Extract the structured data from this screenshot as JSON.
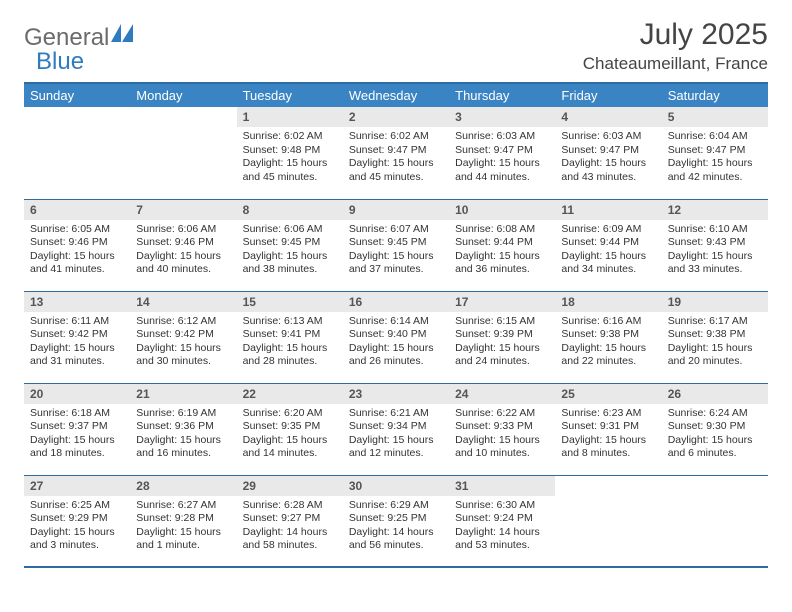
{
  "logo": {
    "general": "General",
    "blue": "Blue"
  },
  "title": "July 2025",
  "location": "Chateaumeillant, France",
  "colors": {
    "header_bg": "#3b84c4",
    "header_border": "#2f6ca3",
    "daynum_bg": "#e9e9e9",
    "text": "#333333",
    "logo_gray": "#6b6b6b",
    "logo_blue": "#2f7bbf"
  },
  "weekdays": [
    "Sunday",
    "Monday",
    "Tuesday",
    "Wednesday",
    "Thursday",
    "Friday",
    "Saturday"
  ],
  "weeks": [
    [
      {
        "empty": true
      },
      {
        "empty": true
      },
      {
        "n": "1",
        "sr": "Sunrise: 6:02 AM",
        "ss": "Sunset: 9:48 PM",
        "dl": "Daylight: 15 hours and 45 minutes."
      },
      {
        "n": "2",
        "sr": "Sunrise: 6:02 AM",
        "ss": "Sunset: 9:47 PM",
        "dl": "Daylight: 15 hours and 45 minutes."
      },
      {
        "n": "3",
        "sr": "Sunrise: 6:03 AM",
        "ss": "Sunset: 9:47 PM",
        "dl": "Daylight: 15 hours and 44 minutes."
      },
      {
        "n": "4",
        "sr": "Sunrise: 6:03 AM",
        "ss": "Sunset: 9:47 PM",
        "dl": "Daylight: 15 hours and 43 minutes."
      },
      {
        "n": "5",
        "sr": "Sunrise: 6:04 AM",
        "ss": "Sunset: 9:47 PM",
        "dl": "Daylight: 15 hours and 42 minutes."
      }
    ],
    [
      {
        "n": "6",
        "sr": "Sunrise: 6:05 AM",
        "ss": "Sunset: 9:46 PM",
        "dl": "Daylight: 15 hours and 41 minutes."
      },
      {
        "n": "7",
        "sr": "Sunrise: 6:06 AM",
        "ss": "Sunset: 9:46 PM",
        "dl": "Daylight: 15 hours and 40 minutes."
      },
      {
        "n": "8",
        "sr": "Sunrise: 6:06 AM",
        "ss": "Sunset: 9:45 PM",
        "dl": "Daylight: 15 hours and 38 minutes."
      },
      {
        "n": "9",
        "sr": "Sunrise: 6:07 AM",
        "ss": "Sunset: 9:45 PM",
        "dl": "Daylight: 15 hours and 37 minutes."
      },
      {
        "n": "10",
        "sr": "Sunrise: 6:08 AM",
        "ss": "Sunset: 9:44 PM",
        "dl": "Daylight: 15 hours and 36 minutes."
      },
      {
        "n": "11",
        "sr": "Sunrise: 6:09 AM",
        "ss": "Sunset: 9:44 PM",
        "dl": "Daylight: 15 hours and 34 minutes."
      },
      {
        "n": "12",
        "sr": "Sunrise: 6:10 AM",
        "ss": "Sunset: 9:43 PM",
        "dl": "Daylight: 15 hours and 33 minutes."
      }
    ],
    [
      {
        "n": "13",
        "sr": "Sunrise: 6:11 AM",
        "ss": "Sunset: 9:42 PM",
        "dl": "Daylight: 15 hours and 31 minutes."
      },
      {
        "n": "14",
        "sr": "Sunrise: 6:12 AM",
        "ss": "Sunset: 9:42 PM",
        "dl": "Daylight: 15 hours and 30 minutes."
      },
      {
        "n": "15",
        "sr": "Sunrise: 6:13 AM",
        "ss": "Sunset: 9:41 PM",
        "dl": "Daylight: 15 hours and 28 minutes."
      },
      {
        "n": "16",
        "sr": "Sunrise: 6:14 AM",
        "ss": "Sunset: 9:40 PM",
        "dl": "Daylight: 15 hours and 26 minutes."
      },
      {
        "n": "17",
        "sr": "Sunrise: 6:15 AM",
        "ss": "Sunset: 9:39 PM",
        "dl": "Daylight: 15 hours and 24 minutes."
      },
      {
        "n": "18",
        "sr": "Sunrise: 6:16 AM",
        "ss": "Sunset: 9:38 PM",
        "dl": "Daylight: 15 hours and 22 minutes."
      },
      {
        "n": "19",
        "sr": "Sunrise: 6:17 AM",
        "ss": "Sunset: 9:38 PM",
        "dl": "Daylight: 15 hours and 20 minutes."
      }
    ],
    [
      {
        "n": "20",
        "sr": "Sunrise: 6:18 AM",
        "ss": "Sunset: 9:37 PM",
        "dl": "Daylight: 15 hours and 18 minutes."
      },
      {
        "n": "21",
        "sr": "Sunrise: 6:19 AM",
        "ss": "Sunset: 9:36 PM",
        "dl": "Daylight: 15 hours and 16 minutes."
      },
      {
        "n": "22",
        "sr": "Sunrise: 6:20 AM",
        "ss": "Sunset: 9:35 PM",
        "dl": "Daylight: 15 hours and 14 minutes."
      },
      {
        "n": "23",
        "sr": "Sunrise: 6:21 AM",
        "ss": "Sunset: 9:34 PM",
        "dl": "Daylight: 15 hours and 12 minutes."
      },
      {
        "n": "24",
        "sr": "Sunrise: 6:22 AM",
        "ss": "Sunset: 9:33 PM",
        "dl": "Daylight: 15 hours and 10 minutes."
      },
      {
        "n": "25",
        "sr": "Sunrise: 6:23 AM",
        "ss": "Sunset: 9:31 PM",
        "dl": "Daylight: 15 hours and 8 minutes."
      },
      {
        "n": "26",
        "sr": "Sunrise: 6:24 AM",
        "ss": "Sunset: 9:30 PM",
        "dl": "Daylight: 15 hours and 6 minutes."
      }
    ],
    [
      {
        "n": "27",
        "sr": "Sunrise: 6:25 AM",
        "ss": "Sunset: 9:29 PM",
        "dl": "Daylight: 15 hours and 3 minutes."
      },
      {
        "n": "28",
        "sr": "Sunrise: 6:27 AM",
        "ss": "Sunset: 9:28 PM",
        "dl": "Daylight: 15 hours and 1 minute."
      },
      {
        "n": "29",
        "sr": "Sunrise: 6:28 AM",
        "ss": "Sunset: 9:27 PM",
        "dl": "Daylight: 14 hours and 58 minutes."
      },
      {
        "n": "30",
        "sr": "Sunrise: 6:29 AM",
        "ss": "Sunset: 9:25 PM",
        "dl": "Daylight: 14 hours and 56 minutes."
      },
      {
        "n": "31",
        "sr": "Sunrise: 6:30 AM",
        "ss": "Sunset: 9:24 PM",
        "dl": "Daylight: 14 hours and 53 minutes."
      },
      {
        "empty": true
      },
      {
        "empty": true
      }
    ]
  ]
}
